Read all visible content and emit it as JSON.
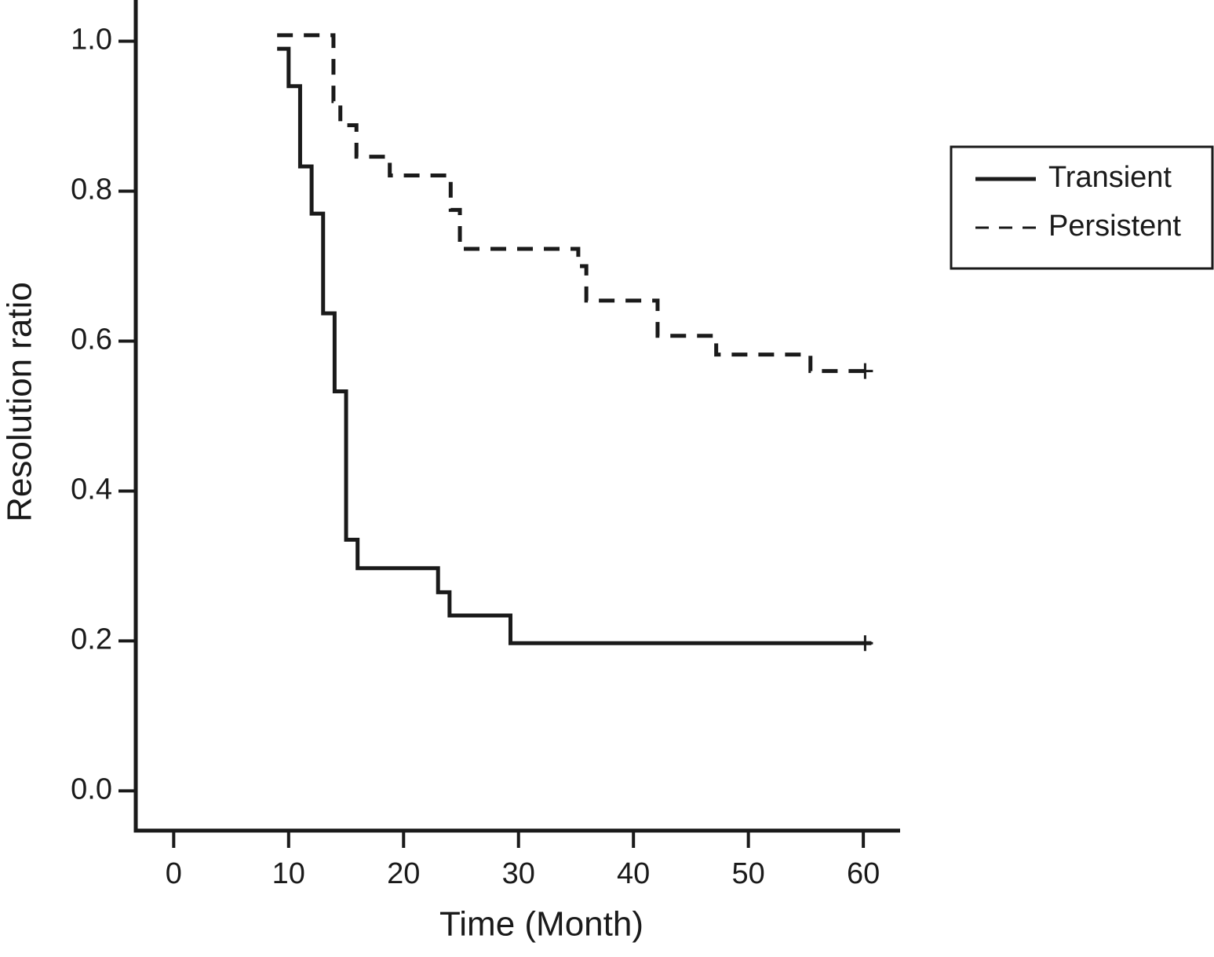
{
  "chart_data": {
    "type": "step",
    "x_label": "Time (Month)",
    "y_label": "Resolution  ratio",
    "xlim": [
      -3.3,
      63.2
    ],
    "ylim": [
      -0.053,
      1.055
    ],
    "xticks": [
      0,
      10,
      20,
      30,
      40,
      50,
      60
    ],
    "yticks": [
      {
        "value": 0,
        "label": "0.0"
      },
      0.2,
      0.4,
      0.6,
      0.8,
      {
        "value": 1,
        "label": "1.0"
      }
    ],
    "legend_position": "right",
    "series": [
      {
        "name": "Transient",
        "color": "#1a1a1a",
        "dash": "solid",
        "x": [
          9,
          10,
          11,
          12,
          13,
          14,
          15,
          16,
          23,
          24,
          29.3,
          60.7
        ],
        "values": [
          0.99,
          0.94,
          0.833,
          0.77,
          0.637,
          0.533,
          0.335,
          0.297,
          0.265,
          0.234,
          0.197,
          0.197
        ]
      },
      {
        "name": "Persistent",
        "color": "#1a1a1a",
        "dash": "dashed",
        "x": [
          9,
          13.9,
          14.5,
          15.9,
          18.8,
          24.1,
          24.9,
          35.2,
          35.9,
          42.1,
          47.2,
          55.4,
          60.7
        ],
        "values": [
          1.008,
          0.92,
          0.888,
          0.846,
          0.821,
          0.775,
          0.723,
          0.7,
          0.654,
          0.607,
          0.582,
          0.56,
          0.56
        ]
      }
    ]
  }
}
